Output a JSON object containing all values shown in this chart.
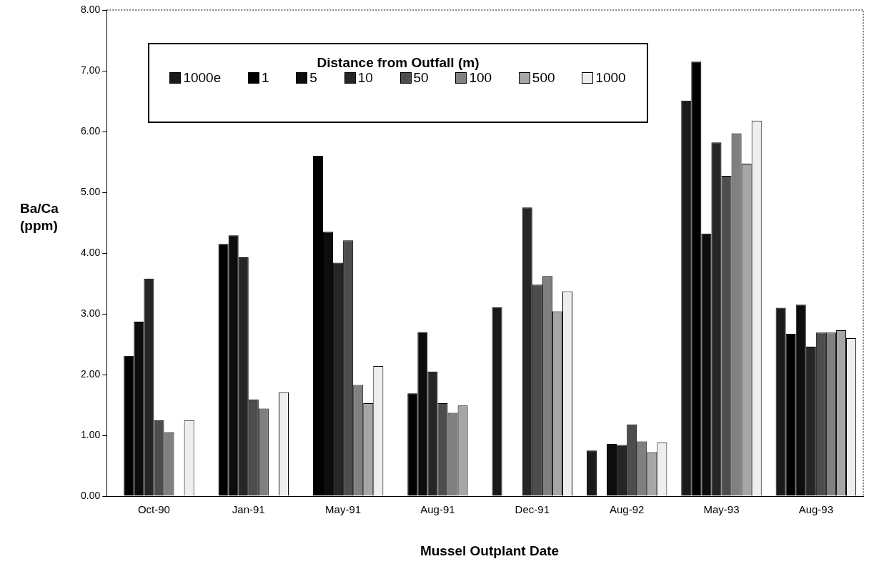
{
  "chart_data": {
    "type": "bar",
    "xlabel": "Mussel Outplant Date",
    "ylabel": "Ba/Ca (ppm)",
    "legend_title": "Distance from Outfall (m)",
    "categories": [
      "Oct-90",
      "Jan-91",
      "May-91",
      "Aug-91",
      "Dec-91",
      "Aug-92",
      "May-93",
      "Aug-93"
    ],
    "series": [
      {
        "name": "1000e",
        "color": "#1a1a1a",
        "values": [
          null,
          null,
          null,
          null,
          3.11,
          0.75,
          6.51,
          3.1
        ]
      },
      {
        "name": "1",
        "color": "#000000",
        "values": [
          2.31,
          4.15,
          5.6,
          1.69,
          null,
          null,
          7.15,
          2.67
        ]
      },
      {
        "name": "5",
        "color": "#0d0d0d",
        "values": [
          2.87,
          4.29,
          4.35,
          2.7,
          null,
          0.86,
          4.32,
          3.15
        ]
      },
      {
        "name": "10",
        "color": "#262626",
        "values": [
          3.58,
          3.93,
          3.84,
          2.05,
          4.75,
          0.84,
          5.82,
          2.46
        ]
      },
      {
        "name": "50",
        "color": "#4d4d4d",
        "values": [
          1.25,
          1.59,
          4.21,
          1.53,
          3.48,
          1.18,
          5.27,
          2.69
        ]
      },
      {
        "name": "100",
        "color": "#808080",
        "values": [
          1.05,
          1.44,
          1.83,
          1.37,
          3.62,
          0.9,
          5.97,
          2.69
        ]
      },
      {
        "name": "500",
        "color": "#a6a6a6",
        "values": [
          null,
          null,
          1.53,
          1.49,
          3.04,
          0.72,
          5.47,
          2.73
        ]
      },
      {
        "name": "1000",
        "color": "#eeeeee",
        "values": [
          1.25,
          1.71,
          2.14,
          null,
          3.37,
          0.88,
          6.18,
          2.6
        ]
      }
    ],
    "ylim": [
      0,
      8
    ],
    "yticks": [
      {
        "value": 0,
        "label": "0.00"
      },
      {
        "value": 1,
        "label": "1.00"
      },
      {
        "value": 2,
        "label": "2.00"
      },
      {
        "value": 3,
        "label": "3.00"
      },
      {
        "value": 4,
        "label": "4.00"
      },
      {
        "value": 5,
        "label": "5.00"
      },
      {
        "value": 6,
        "label": "6.00"
      },
      {
        "value": 7,
        "label": "7.00"
      },
      {
        "value": 8,
        "label": "8.00"
      }
    ],
    "grid": false,
    "legend": "top left"
  }
}
